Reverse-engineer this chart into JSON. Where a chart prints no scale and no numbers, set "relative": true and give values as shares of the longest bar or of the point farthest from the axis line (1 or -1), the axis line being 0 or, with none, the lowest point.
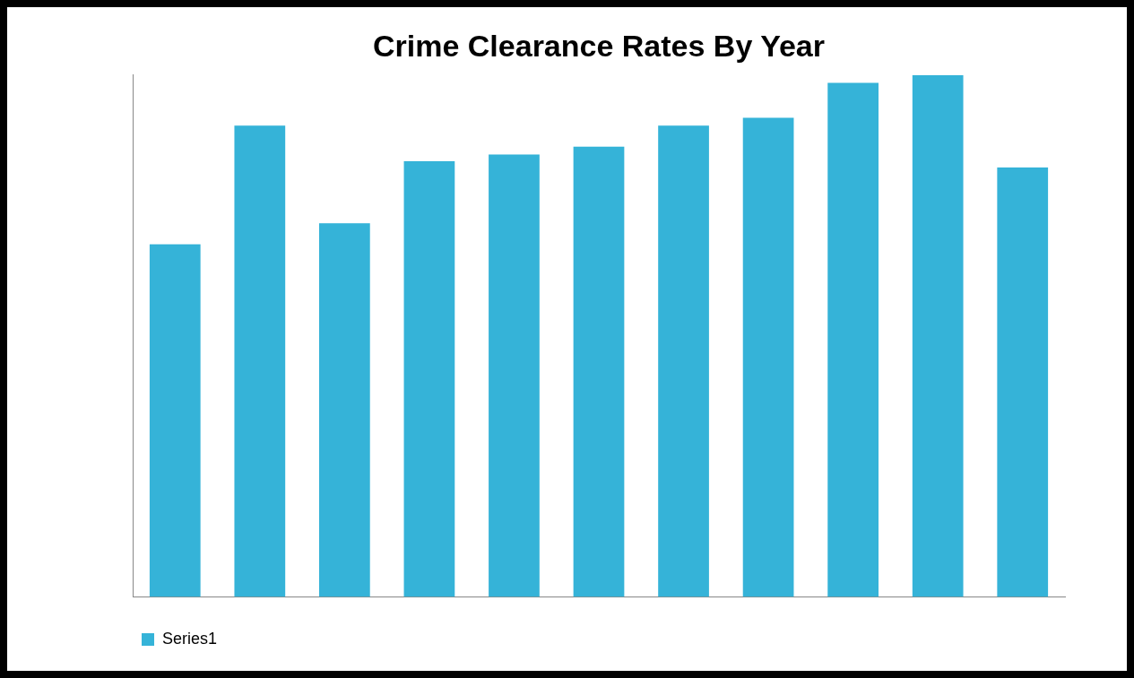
{
  "chart_data": {
    "type": "bar",
    "title": "Crime Clearance Rates By Year",
    "relative": true,
    "categories": [
      null,
      null,
      null,
      null,
      null,
      null,
      null,
      null,
      null,
      null,
      null
    ],
    "series": [
      {
        "name": "Series1",
        "color": "#35b3d8",
        "values": [
          0.676,
          0.903,
          0.716,
          0.835,
          0.848,
          0.863,
          0.903,
          0.918,
          0.985,
          1,
          0.823
        ]
      }
    ],
    "legend": "bottom left"
  }
}
